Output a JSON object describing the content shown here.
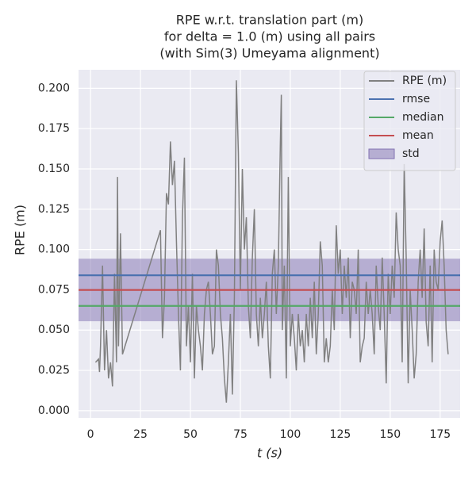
{
  "chart_data": {
    "type": "line",
    "title": [
      "RPE w.r.t. translation part (m)",
      "for delta = 1.0 (m) using all pairs",
      "(with Sim(3) Umeyama alignment)"
    ],
    "xlabel": "t (s)",
    "ylabel": "RPE (m)",
    "xlim": [
      -6,
      185
    ],
    "ylim": [
      -0.0045,
      0.2115
    ],
    "xticks": [
      0,
      25,
      50,
      75,
      100,
      125,
      150,
      175
    ],
    "yticks": [
      {
        "value": 0,
        "label": "0.000"
      },
      {
        "value": 0.025,
        "label": "0.025"
      },
      {
        "value": 0.05,
        "label": "0.050"
      },
      {
        "value": 0.075,
        "label": "0.075"
      },
      {
        "value": 0.1,
        "label": "0.100"
      },
      {
        "value": 0.125,
        "label": "0.125"
      },
      {
        "value": 0.15,
        "label": "0.150"
      },
      {
        "value": 0.175,
        "label": "0.175"
      },
      {
        "value": 0.2,
        "label": "0.200"
      }
    ],
    "grid": true,
    "legend": "upper right",
    "series": [
      {
        "name": "RPE (m)",
        "color": "#808080",
        "x": [
          2.5,
          4,
          4.5,
          5,
          6,
          7,
          8,
          9,
          10,
          11,
          12,
          13,
          13.5,
          14,
          15,
          16,
          35,
          36,
          37,
          38,
          39,
          40,
          41,
          42,
          43,
          44,
          45,
          46,
          47,
          48,
          49,
          50,
          51,
          52,
          53,
          54,
          55,
          56,
          57,
          58,
          59,
          60,
          61,
          62,
          63,
          64,
          65,
          66,
          67,
          68,
          69,
          70,
          71,
          72,
          73,
          74,
          75,
          76,
          77,
          78,
          79,
          80,
          81,
          82,
          83,
          84,
          85,
          86,
          87,
          88,
          89,
          90,
          91,
          92,
          93,
          94,
          95,
          95.5,
          96,
          97,
          98,
          99,
          100,
          101,
          102,
          103,
          104,
          105,
          106,
          107,
          108,
          109,
          110,
          111,
          112,
          113,
          114,
          115,
          116,
          117,
          118,
          119,
          120,
          121,
          122,
          123,
          124,
          125,
          126,
          127,
          128,
          129,
          130,
          131,
          132,
          133,
          134,
          135,
          136,
          137,
          138,
          139,
          140,
          141,
          142,
          143,
          144,
          145,
          146,
          147,
          148,
          149,
          150,
          151,
          152,
          153,
          154,
          155,
          156,
          157,
          158,
          159,
          160,
          161,
          162,
          163,
          164,
          165,
          166,
          167,
          168,
          169,
          170,
          171,
          172,
          173,
          174,
          175,
          176,
          177,
          178,
          179
        ],
        "values": [
          0.03,
          0.032,
          0.024,
          0.04,
          0.09,
          0.025,
          0.05,
          0.02,
          0.03,
          0.015,
          0.085,
          0.03,
          0.145,
          0.04,
          0.11,
          0.035,
          0.112,
          0.045,
          0.07,
          0.135,
          0.128,
          0.167,
          0.14,
          0.155,
          0.105,
          0.06,
          0.025,
          0.12,
          0.157,
          0.04,
          0.065,
          0.03,
          0.085,
          0.02,
          0.065,
          0.05,
          0.04,
          0.025,
          0.06,
          0.075,
          0.08,
          0.06,
          0.035,
          0.04,
          0.1,
          0.09,
          0.06,
          0.045,
          0.02,
          0.005,
          0.03,
          0.06,
          0.01,
          0.07,
          0.205,
          0.16,
          0.075,
          0.15,
          0.1,
          0.12,
          0.065,
          0.045,
          0.095,
          0.125,
          0.06,
          0.04,
          0.07,
          0.045,
          0.06,
          0.08,
          0.04,
          0.02,
          0.085,
          0.1,
          0.06,
          0.09,
          0.165,
          0.196,
          0.05,
          0.09,
          0.02,
          0.145,
          0.04,
          0.06,
          0.045,
          0.025,
          0.06,
          0.04,
          0.05,
          0.03,
          0.06,
          0.04,
          0.07,
          0.045,
          0.08,
          0.035,
          0.06,
          0.105,
          0.09,
          0.03,
          0.045,
          0.03,
          0.04,
          0.075,
          0.05,
          0.115,
          0.085,
          0.1,
          0.06,
          0.09,
          0.07,
          0.095,
          0.045,
          0.08,
          0.075,
          0.06,
          0.1,
          0.03,
          0.04,
          0.045,
          0.08,
          0.06,
          0.075,
          0.06,
          0.035,
          0.09,
          0.065,
          0.05,
          0.095,
          0.06,
          0.017,
          0.085,
          0.06,
          0.09,
          0.07,
          0.123,
          0.1,
          0.09,
          0.03,
          0.153,
          0.095,
          0.017,
          0.075,
          0.05,
          0.02,
          0.035,
          0.08,
          0.1,
          0.07,
          0.113,
          0.055,
          0.04,
          0.09,
          0.03,
          0.1,
          0.08,
          0.075,
          0.105,
          0.118,
          0.09,
          0.05,
          0.035
        ]
      }
    ],
    "stats": [
      {
        "name": "rmse",
        "color": "#4c72b0",
        "value": 0.084
      },
      {
        "name": "median",
        "color": "#55a868",
        "value": 0.065
      },
      {
        "name": "mean",
        "color": "#c44e52",
        "value": 0.0749
      }
    ],
    "std": {
      "name": "std",
      "color": "#8172b2",
      "value": 0.0194
    }
  }
}
